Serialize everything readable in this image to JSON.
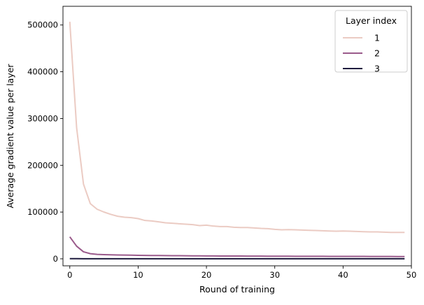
{
  "chart_data": {
    "type": "line",
    "xlabel": "Round of training",
    "ylabel": "Average gradient value per layer",
    "xlim": [
      -1,
      50
    ],
    "ylim": [
      -15000,
      540000
    ],
    "xticks": [
      0,
      10,
      20,
      30,
      40,
      50
    ],
    "yticks": [
      0,
      100000,
      200000,
      300000,
      400000,
      500000
    ],
    "xtick_labels": [
      "0",
      "10",
      "20",
      "30",
      "40",
      "50"
    ],
    "ytick_labels": [
      "0",
      "100000",
      "200000",
      "300000",
      "400000",
      "500000"
    ],
    "grid": false,
    "legend": {
      "title": "Layer index",
      "placement": "top-right"
    },
    "x": [
      0,
      1,
      2,
      3,
      4,
      5,
      6,
      7,
      8,
      9,
      10,
      11,
      12,
      13,
      14,
      15,
      16,
      17,
      18,
      19,
      20,
      21,
      22,
      23,
      24,
      25,
      26,
      27,
      28,
      29,
      30,
      31,
      32,
      33,
      34,
      35,
      36,
      37,
      38,
      39,
      40,
      41,
      42,
      43,
      44,
      45,
      46,
      47,
      48,
      49
    ],
    "series": [
      {
        "name": "1",
        "color": "#ebcbc3",
        "values": [
          507000,
          280000,
          160000,
          118000,
          106000,
          100000,
          95000,
          91000,
          89000,
          88000,
          86000,
          82000,
          81000,
          79000,
          77000,
          76000,
          75000,
          74000,
          73000,
          71000,
          72000,
          70000,
          69000,
          69000,
          67500,
          67000,
          67000,
          66000,
          65000,
          64500,
          63000,
          62000,
          62500,
          62000,
          61500,
          61000,
          60500,
          60000,
          59500,
          59000,
          59500,
          59000,
          58500,
          58000,
          57500,
          57500,
          57000,
          56500,
          56500,
          56500
        ]
      },
      {
        "name": "2",
        "color": "#9a5a8b",
        "values": [
          47000,
          27000,
          15000,
          11000,
          9500,
          9000,
          8500,
          8200,
          8000,
          7800,
          7500,
          7300,
          7100,
          7000,
          6800,
          6700,
          6600,
          6500,
          6400,
          6300,
          6200,
          6100,
          6000,
          6000,
          5900,
          5850,
          5800,
          5750,
          5700,
          5650,
          5600,
          5550,
          5500,
          5450,
          5400,
          5350,
          5300,
          5300,
          5250,
          5200,
          5200,
          5150,
          5100,
          5100,
          5050,
          5000,
          5000,
          4950,
          4900,
          4900
        ]
      },
      {
        "name": "3",
        "color": "#1f1b3e",
        "values": [
          300,
          250,
          220,
          200,
          190,
          180,
          175,
          170,
          165,
          160,
          155,
          150,
          148,
          145,
          142,
          140,
          138,
          136,
          134,
          132,
          130,
          128,
          126,
          124,
          122,
          120,
          118,
          116,
          114,
          112,
          110,
          108,
          106,
          104,
          102,
          100,
          99,
          98,
          97,
          96,
          95,
          94,
          93,
          92,
          91,
          90,
          89,
          88,
          87,
          86
        ]
      }
    ]
  }
}
